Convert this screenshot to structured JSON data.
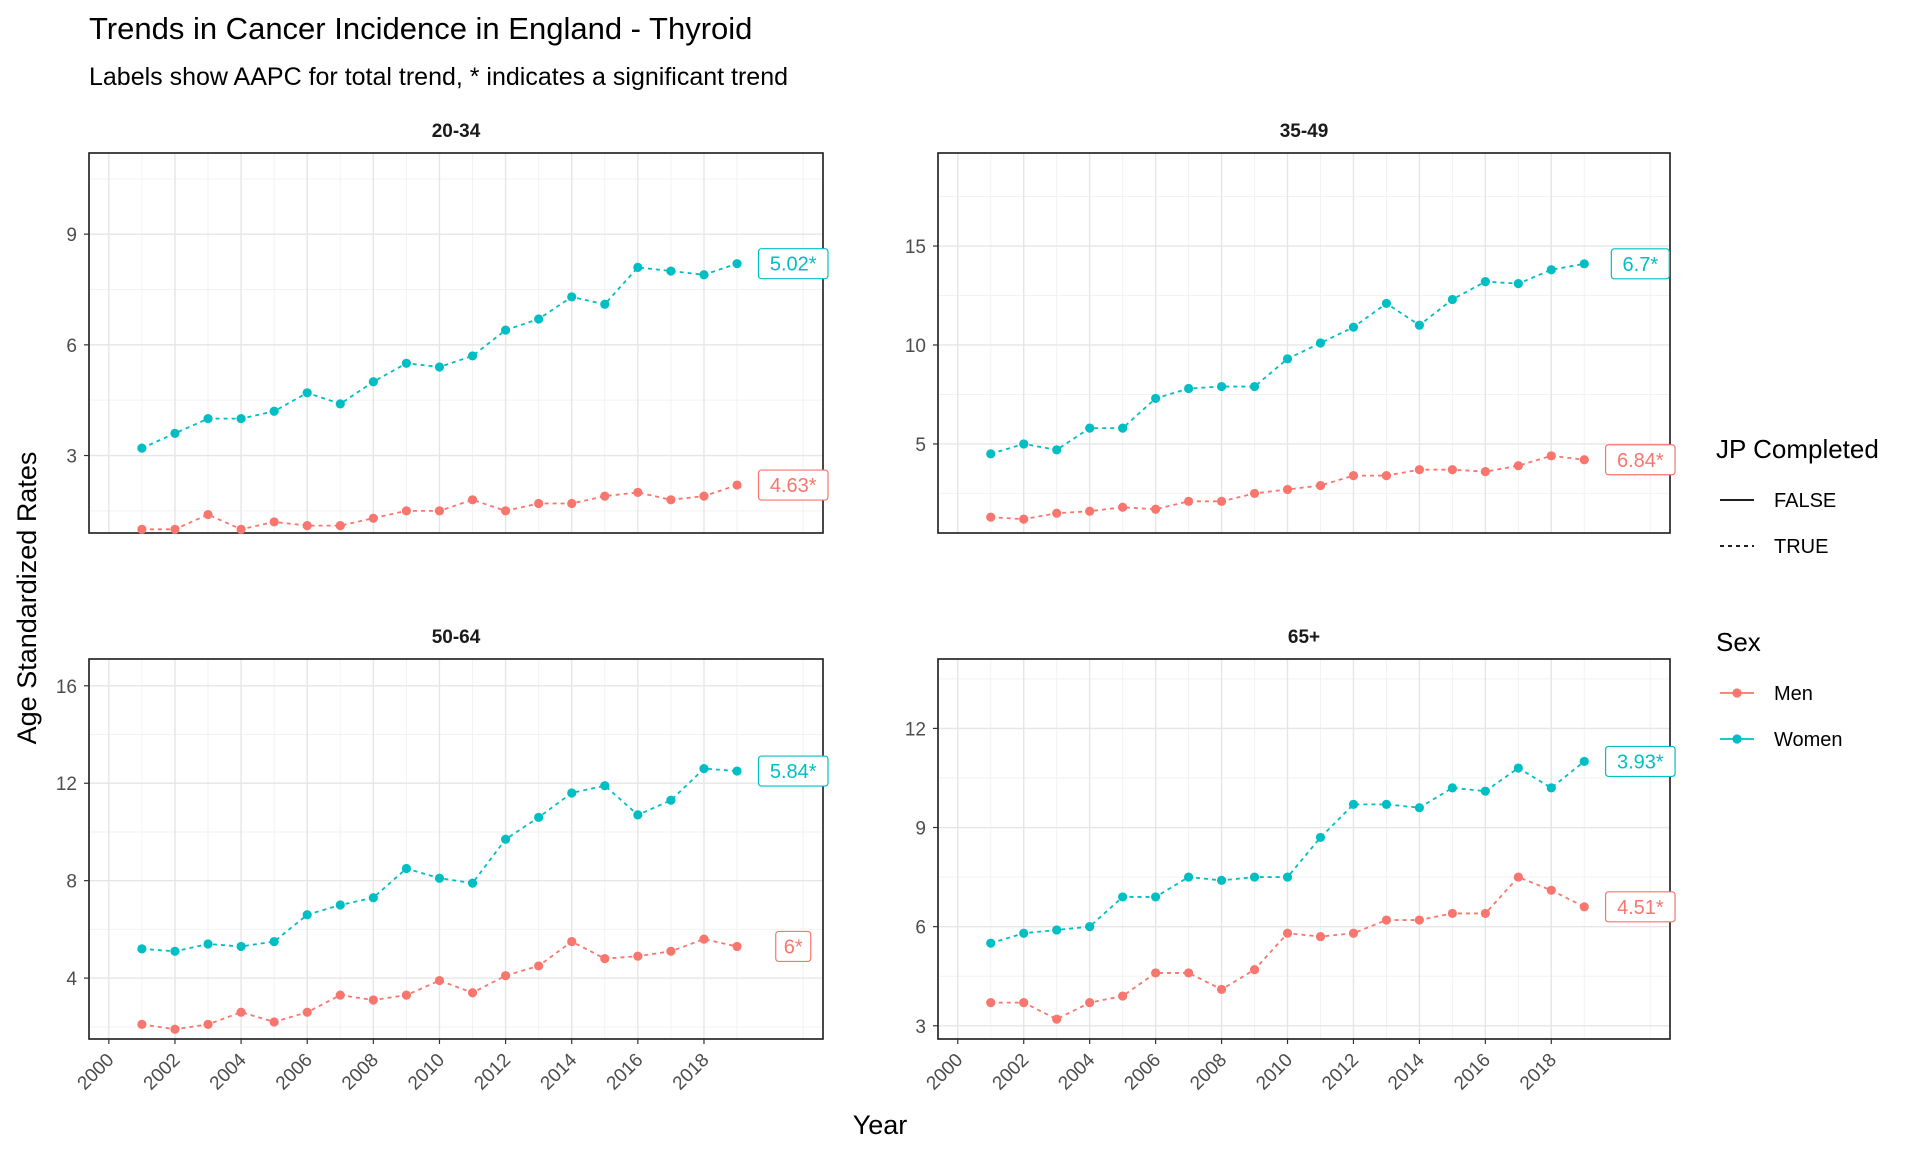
{
  "chart_data": {
    "type": "line",
    "title": "Trends in Cancer Incidence in England - Thyroid",
    "subtitle": "Labels show AAPC for total trend, * indicates a significant trend",
    "xlabel": "Year",
    "ylabel": "Age Standardized Rates",
    "xlim": [
      1999.4,
      2021.6
    ],
    "x_ticks": [
      "2000",
      "2002",
      "2004",
      "2006",
      "2008",
      "2010",
      "2012",
      "2014",
      "2016",
      "2018"
    ],
    "x": [
      2001,
      2002,
      2003,
      2004,
      2005,
      2006,
      2007,
      2008,
      2009,
      2010,
      2011,
      2012,
      2013,
      2014,
      2015,
      2016,
      2017,
      2018,
      2019
    ],
    "grid": true,
    "legend_placement": "right",
    "legends": [
      {
        "title": "JP Completed",
        "items": [
          {
            "label": "FALSE",
            "linetype": "solid"
          },
          {
            "label": "TRUE",
            "linetype": "dashed"
          }
        ]
      },
      {
        "title": "Sex",
        "items": [
          {
            "label": "Men",
            "color": "#F8766D"
          },
          {
            "label": "Women",
            "color": "#00BFC4"
          }
        ]
      }
    ],
    "colors": {
      "Men": "#F8766D",
      "Women": "#00BFC4"
    },
    "panels": [
      {
        "title": "20-34",
        "ylim": [
          0.9,
          11.2
        ],
        "y_ticks": [
          3,
          6,
          9
        ],
        "series": [
          {
            "name": "Women",
            "jp_completed": "TRUE",
            "label": "5.02*",
            "values": [
              3.2,
              3.6,
              4.0,
              4.0,
              4.2,
              4.7,
              4.4,
              5.0,
              5.5,
              5.4,
              5.7,
              6.4,
              6.7,
              7.3,
              7.1,
              8.1,
              8.0,
              7.9,
              8.2
            ]
          },
          {
            "name": "Men",
            "jp_completed": "TRUE",
            "label": "4.63*",
            "values": [
              1.0,
              1.0,
              1.4,
              1.0,
              1.2,
              1.1,
              1.1,
              1.3,
              1.5,
              1.5,
              1.8,
              1.5,
              1.7,
              1.7,
              1.9,
              2.0,
              1.8,
              1.9,
              2.2
            ]
          }
        ]
      },
      {
        "title": "35-49",
        "ylim": [
          0.5,
          19.7
        ],
        "y_ticks": [
          5,
          10,
          15
        ],
        "series": [
          {
            "name": "Women",
            "jp_completed": "TRUE",
            "label": "6.7*",
            "values": [
              4.5,
              5.0,
              4.7,
              5.8,
              5.8,
              7.3,
              7.8,
              7.9,
              7.9,
              9.3,
              10.1,
              10.9,
              12.1,
              11.0,
              12.3,
              13.2,
              13.1,
              13.8,
              14.1
            ]
          },
          {
            "name": "Men",
            "jp_completed": "TRUE",
            "label": "6.84*",
            "values": [
              1.3,
              1.2,
              1.5,
              1.6,
              1.8,
              1.7,
              2.1,
              2.1,
              2.5,
              2.7,
              2.9,
              3.4,
              3.4,
              3.7,
              3.7,
              3.6,
              3.9,
              4.4,
              4.2
            ]
          }
        ]
      },
      {
        "title": "50-64",
        "ylim": [
          1.5,
          17.1
        ],
        "y_ticks": [
          4,
          8,
          12,
          16
        ],
        "series": [
          {
            "name": "Women",
            "jp_completed": "TRUE",
            "label": "5.84*",
            "values": [
              5.2,
              5.1,
              5.4,
              5.3,
              5.5,
              6.6,
              7.0,
              7.3,
              8.5,
              8.1,
              7.9,
              9.7,
              10.6,
              11.6,
              11.9,
              10.7,
              11.3,
              12.6,
              12.5
            ]
          },
          {
            "name": "Men",
            "jp_completed": "TRUE",
            "label": "6*",
            "values": [
              2.1,
              1.9,
              2.1,
              2.6,
              2.2,
              2.6,
              3.3,
              3.1,
              3.3,
              3.9,
              3.4,
              4.1,
              4.5,
              5.5,
              4.8,
              4.9,
              5.1,
              5.6,
              5.3
            ]
          }
        ]
      },
      {
        "title": "65+",
        "ylim": [
          2.6,
          14.1
        ],
        "y_ticks": [
          3,
          6,
          9,
          12
        ],
        "series": [
          {
            "name": "Women",
            "jp_completed": "TRUE",
            "label": "3.93*",
            "values": [
              5.5,
              5.8,
              5.9,
              6.0,
              6.9,
              6.9,
              7.5,
              7.4,
              7.5,
              7.5,
              8.7,
              9.7,
              9.7,
              9.6,
              10.2,
              10.1,
              10.8,
              10.2,
              11.0
            ]
          },
          {
            "name": "Men",
            "jp_completed": "TRUE",
            "label": "4.51*",
            "values": [
              3.7,
              3.7,
              3.2,
              3.7,
              3.9,
              4.6,
              4.6,
              4.1,
              4.7,
              5.8,
              5.7,
              5.8,
              6.2,
              6.2,
              6.4,
              6.4,
              7.5,
              7.1,
              6.6
            ]
          }
        ]
      }
    ]
  }
}
